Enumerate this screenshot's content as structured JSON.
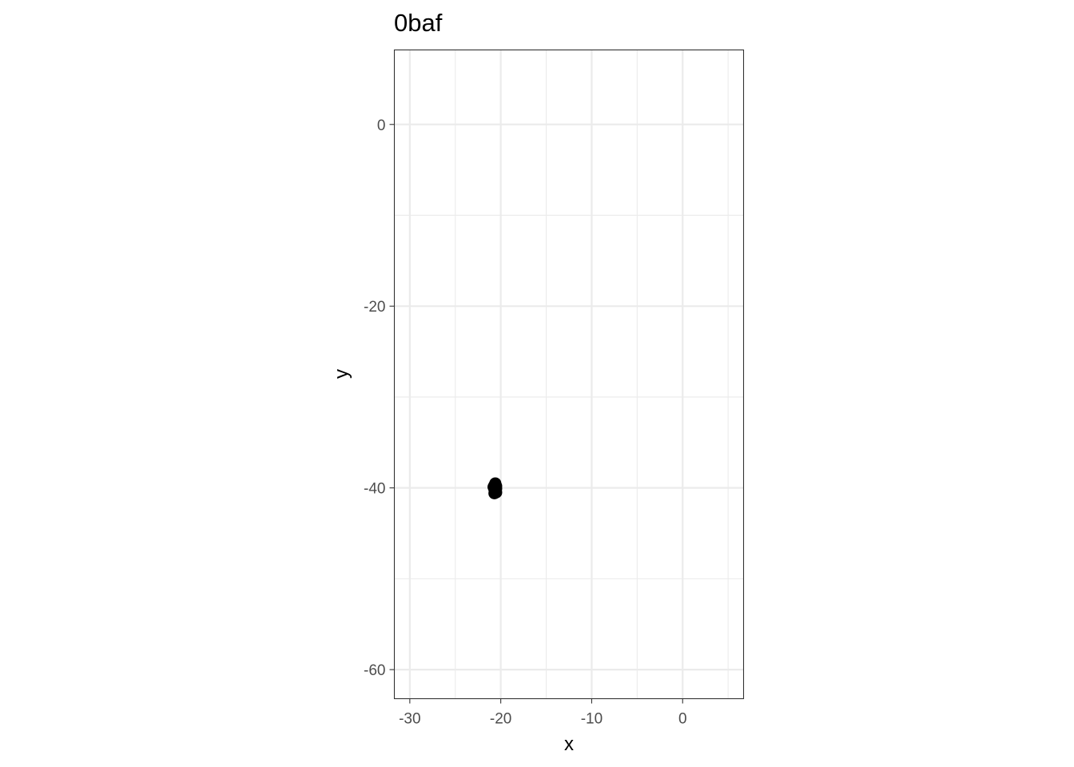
{
  "chart_data": {
    "type": "scatter",
    "title": "0baf",
    "xlabel": "x",
    "ylabel": "y",
    "xlim": [
      -31.7,
      6.7
    ],
    "ylim": [
      -63.2,
      8.2
    ],
    "xticks": [
      -30,
      -20,
      -10,
      0
    ],
    "xtick_labels": [
      "-30",
      "-20",
      "-10",
      "0"
    ],
    "x_minor_ticks": [
      -25,
      -15,
      -5,
      5
    ],
    "yticks": [
      0,
      -20,
      -40,
      -60
    ],
    "ytick_labels": [
      "0",
      "-20",
      "-40",
      "-60"
    ],
    "y_minor_ticks": [
      -10,
      -30,
      -50
    ],
    "grid": true,
    "theme": "bw",
    "point_color": "#000000",
    "points": [
      {
        "x": -20.6,
        "y": -39.5
      },
      {
        "x": -20.7,
        "y": -39.7
      },
      {
        "x": -20.5,
        "y": -39.8
      },
      {
        "x": -20.8,
        "y": -39.9
      },
      {
        "x": -20.6,
        "y": -40.0
      },
      {
        "x": -20.5,
        "y": -40.1
      },
      {
        "x": -20.7,
        "y": -40.2
      },
      {
        "x": -20.6,
        "y": -40.3
      },
      {
        "x": -20.5,
        "y": -40.5
      },
      {
        "x": -20.7,
        "y": -40.6
      }
    ]
  }
}
